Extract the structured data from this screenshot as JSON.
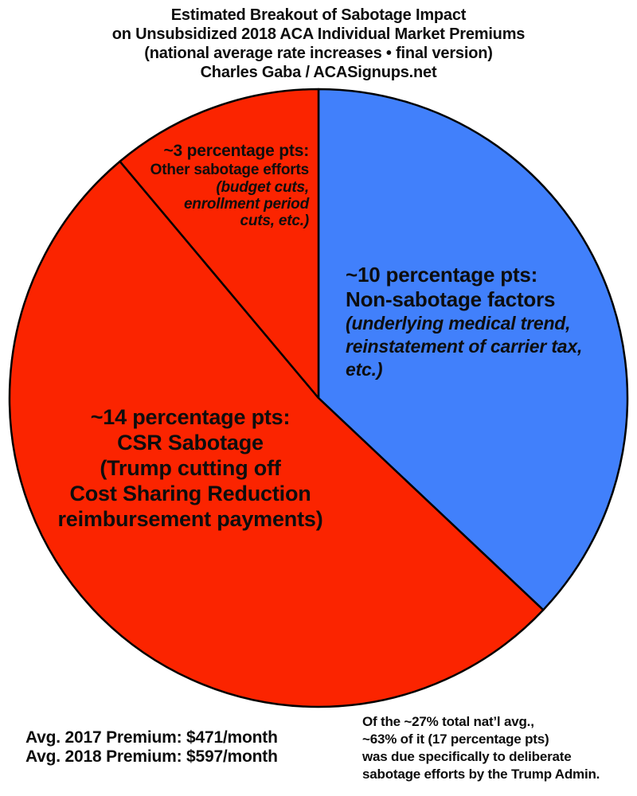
{
  "header": {
    "lines": [
      "Estimated Breakout of Sabotage Impact",
      "on Unsubsidized 2018 ACA Individual Market Premiums",
      "(national average rate increases • final version)",
      "Charles Gaba / ACASignups.net"
    ]
  },
  "chart_data": {
    "type": "pie",
    "title": "Estimated Breakout of Sabotage Impact on Unsubsidized 2018 ACA Individual Market Premiums",
    "units": "percentage points of national average premium rate increase",
    "total_percentage_points": 27,
    "start_angle_deg": 0,
    "direction": "clockwise",
    "stroke_color": "#000000",
    "slices": [
      {
        "id": "non-sabotage",
        "name": "Non-sabotage factors",
        "value": 10,
        "color": "#4180fb",
        "label": {
          "heading": "~10 percentage pts:",
          "subheading": "Non-sabotage factors",
          "detail": [
            "(underlying medical trend,",
            "reinstatement of carrier tax,",
            "etc.)"
          ]
        }
      },
      {
        "id": "csr-sabotage",
        "name": "CSR Sabotage",
        "value": 14,
        "color": "#fb2400",
        "label": {
          "heading": "~14 percentage pts:",
          "lines": [
            "CSR Sabotage",
            "(Trump cutting off",
            "Cost Sharing Reduction",
            "reimbursement payments)"
          ]
        }
      },
      {
        "id": "other-sabotage",
        "name": "Other sabotage efforts",
        "value": 3,
        "color": "#fb2400",
        "label": {
          "heading": "~3 percentage pts:",
          "subheading": "Other sabotage efforts",
          "detail": [
            "(budget cuts,",
            "enrollment period",
            "cuts, etc.)"
          ]
        }
      }
    ]
  },
  "footnotes": {
    "premiums": {
      "line1": "Avg. 2017 Premium: $471/month",
      "line2": "Avg. 2018 Premium: $597/month"
    },
    "summary": {
      "lines": [
        "Of the ~27% total nat’l avg.,",
        "~63% of it (17 percentage pts)",
        "was due specifically to deliberate",
        "sabotage efforts by the Trump Admin."
      ]
    }
  }
}
